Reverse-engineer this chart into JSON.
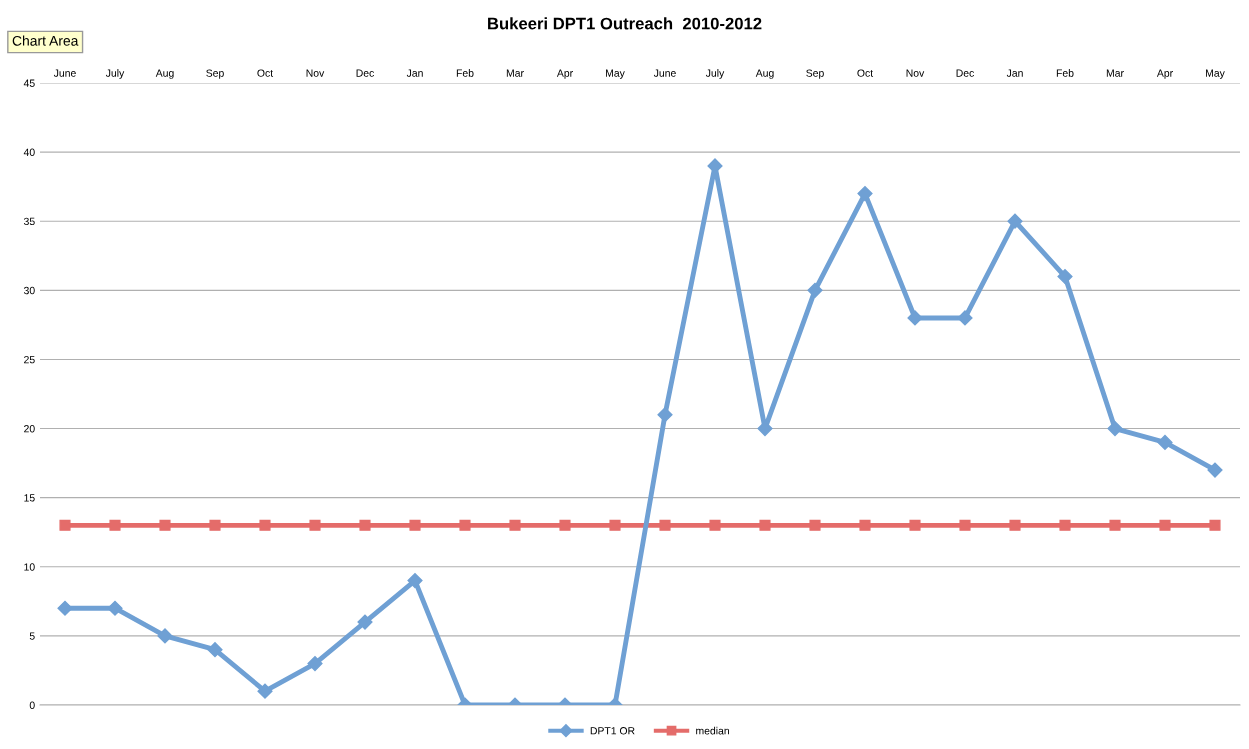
{
  "chart_data": {
    "type": "line",
    "title": "Bukeeri DPT1 Outreach  2010-2012",
    "categories": [
      "June",
      "July",
      "Aug",
      "Sep",
      "Oct",
      "Nov",
      "Dec",
      "Jan",
      "Feb",
      "Mar",
      "Apr",
      "May",
      "June",
      "July",
      "Aug",
      "Sep",
      "Oct",
      "Nov",
      "Dec",
      "Jan",
      "Feb",
      "Mar",
      "Apr",
      "May"
    ],
    "series": [
      {
        "name": "DPT1 OR",
        "color": "#6fa0d4",
        "marker": "diamond",
        "values": [
          7,
          7,
          5,
          4,
          1,
          3,
          6,
          9,
          0,
          0,
          0,
          0,
          21,
          39,
          20,
          30,
          37,
          28,
          28,
          35,
          31,
          20,
          19,
          17
        ]
      },
      {
        "name": "median",
        "color": "#e46c6a",
        "marker": "square",
        "values": [
          13,
          13,
          13,
          13,
          13,
          13,
          13,
          13,
          13,
          13,
          13,
          13,
          13,
          13,
          13,
          13,
          13,
          13,
          13,
          13,
          13,
          13,
          13,
          13
        ]
      }
    ],
    "ylim": [
      0,
      45
    ],
    "yticks": [
      0,
      5,
      10,
      15,
      20,
      25,
      30,
      35,
      40,
      45
    ],
    "grid": "y",
    "legend": "bottom",
    "line_style": "solid",
    "annotations": [
      "Chart Area"
    ]
  }
}
